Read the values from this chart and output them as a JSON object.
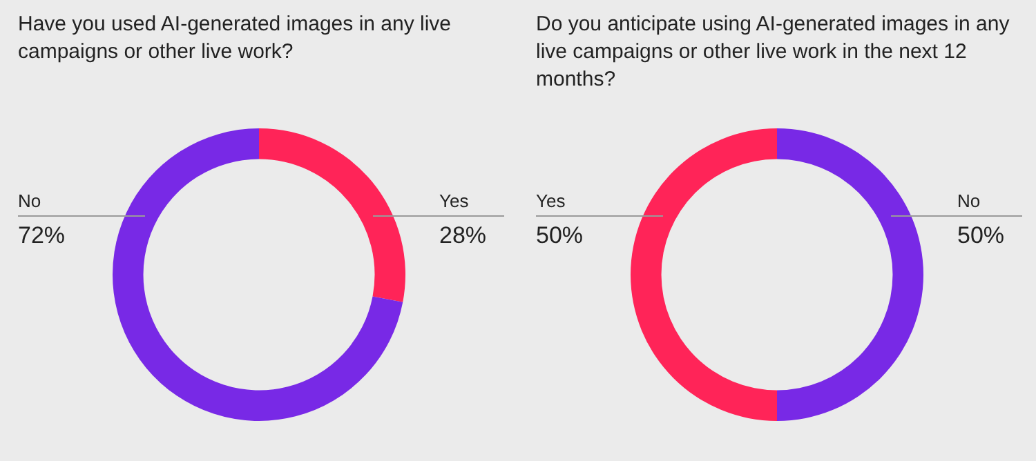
{
  "chart_data": [
    {
      "type": "donut",
      "title": "Have you used AI-generated images in any live campaigns or other live work?",
      "categories": [
        "Yes",
        "No"
      ],
      "values": [
        28,
        72
      ],
      "value_labels": [
        "28%",
        "72%"
      ],
      "colors": [
        "#ff2458",
        "#7829e6"
      ],
      "legend": false
    },
    {
      "type": "donut",
      "title": "Do you anticipate using AI-generated images in any live campaigns or other live work in the next 12 months?",
      "categories": [
        "No",
        "Yes"
      ],
      "values": [
        50,
        50
      ],
      "value_labels": [
        "50%",
        "50%"
      ],
      "colors": [
        "#7829e6",
        "#ff2458"
      ],
      "legend": false
    }
  ]
}
